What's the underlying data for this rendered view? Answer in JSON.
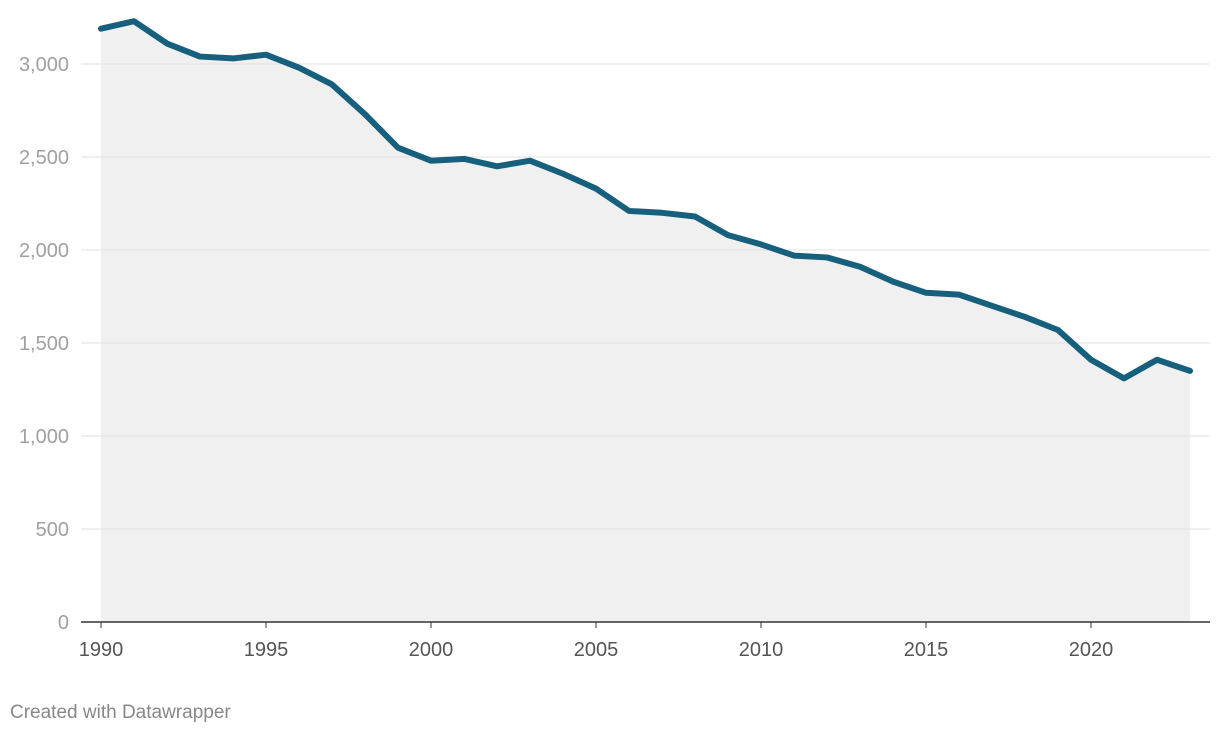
{
  "chart_data": {
    "type": "area",
    "title": "",
    "xlabel": "",
    "ylabel": "",
    "xlim": [
      1990,
      2023
    ],
    "ylim": [
      0,
      3000
    ],
    "grid": true,
    "x_ticks": [
      {
        "value": 1990,
        "label": "1990"
      },
      {
        "value": 1995,
        "label": "1995"
      },
      {
        "value": 2000,
        "label": "2000"
      },
      {
        "value": 2005,
        "label": "2005"
      },
      {
        "value": 2010,
        "label": "2010"
      },
      {
        "value": 2015,
        "label": "2015"
      },
      {
        "value": 2020,
        "label": "2020"
      }
    ],
    "y_ticks": [
      {
        "value": 0,
        "label": "0"
      },
      {
        "value": 500,
        "label": "500"
      },
      {
        "value": 1000,
        "label": "1,000"
      },
      {
        "value": 1500,
        "label": "1,500"
      },
      {
        "value": 2000,
        "label": "2,000"
      },
      {
        "value": 2500,
        "label": "2,500"
      },
      {
        "value": 3000,
        "label": "3,000"
      }
    ],
    "series": [
      {
        "x": [
          1990,
          1991,
          1992,
          1993,
          1994,
          1995,
          1996,
          1997,
          1998,
          1999,
          2000,
          2001,
          2002,
          2003,
          2004,
          2005,
          2006,
          2007,
          2008,
          2009,
          2010,
          2011,
          2012,
          2013,
          2014,
          2015,
          2016,
          2017,
          2018,
          2019,
          2020,
          2021,
          2022,
          2023
        ],
        "values": [
          3190,
          3230,
          3110,
          3040,
          3030,
          3050,
          2980,
          2890,
          2730,
          2550,
          2480,
          2490,
          2450,
          2480,
          2410,
          2330,
          2210,
          2200,
          2180,
          2080,
          2030,
          1970,
          1960,
          1910,
          1830,
          1770,
          1760,
          1700,
          1640,
          1570,
          1410,
          1310,
          1410,
          1350
        ]
      }
    ],
    "colors": {
      "line": "#17607d",
      "area": "#f0f0f0",
      "grid": "#e0e0e0",
      "baseline": "#333333",
      "tick_text": "#a0a0a0",
      "x_tick_text": "#555555"
    }
  },
  "footer": {
    "credit": "Created with Datawrapper"
  }
}
